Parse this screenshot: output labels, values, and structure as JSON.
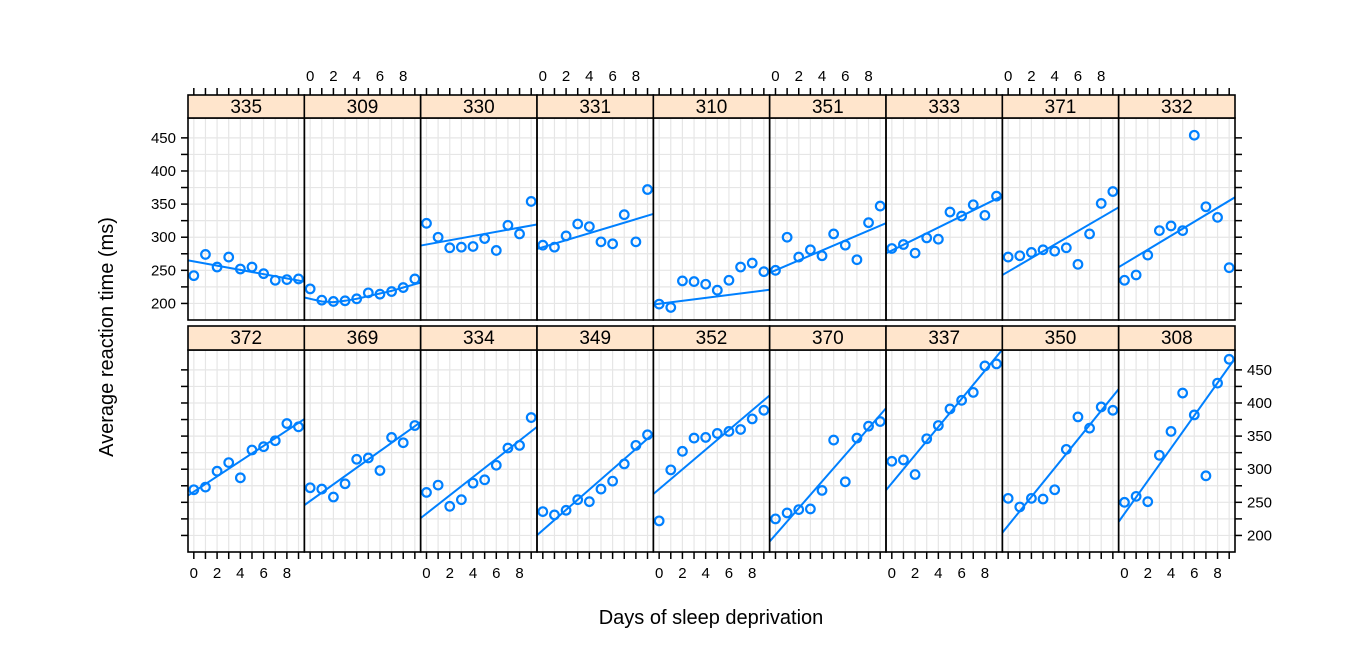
{
  "chart_data": {
    "type": "scatter",
    "layout": "trellis-9x2",
    "xlabel": "Days of sleep deprivation",
    "ylabel": "Average reaction time (ms)",
    "xlim": [
      -0.5,
      9.5
    ],
    "ylim": [
      175,
      480
    ],
    "x_ticks": [
      0,
      2,
      4,
      6,
      8
    ],
    "y_ticks": [
      200,
      250,
      300,
      350,
      400,
      450
    ],
    "grid": true,
    "strip_color": "#FFE5CC",
    "point_color": "#0080FF",
    "line_color": "#0080FF",
    "days": [
      0,
      1,
      2,
      3,
      4,
      5,
      6,
      7,
      8,
      9
    ],
    "panels": [
      {
        "subject": "335",
        "values": [
          242,
          274,
          255,
          270,
          252,
          255,
          245,
          235,
          236,
          237
        ],
        "fit": [
          263.5,
          234.6
        ]
      },
      {
        "subject": "309",
        "values": [
          222,
          205,
          203,
          204,
          207,
          216,
          214,
          218,
          224,
          237
        ],
        "fit": [
          205.2,
          223.1
        ],
        "curve": [
          207,
          203,
          202,
          204,
          207,
          211,
          215,
          219,
          224,
          229
        ]
      },
      {
        "subject": "330",
        "values": [
          321,
          300,
          284,
          285,
          286,
          298,
          280,
          318,
          305,
          354
        ],
        "fit": [
          289.0,
          317.7
        ]
      },
      {
        "subject": "331",
        "values": [
          288,
          285,
          302,
          320,
          316,
          293,
          290,
          334,
          293,
          372
        ],
        "fit": [
          285.0,
          332.5
        ]
      },
      {
        "subject": "310",
        "values": [
          199,
          194,
          234,
          233,
          229,
          220,
          235,
          255,
          261,
          248
        ],
        "fit": [
          199.5,
          219.5
        ]
      },
      {
        "subject": "351",
        "values": [
          250,
          300,
          270,
          281,
          272,
          305,
          288,
          266,
          322,
          347
        ],
        "fit": [
          250.0,
          317.5
        ]
      },
      {
        "subject": "333",
        "values": [
          283,
          289,
          276,
          299,
          297,
          338,
          332,
          349,
          333,
          362
        ],
        "fit": [
          280.0,
          358.0
        ]
      },
      {
        "subject": "371",
        "values": [
          270,
          272,
          277,
          281,
          279,
          284,
          259,
          305,
          351,
          369
        ],
        "fit": [
          248.0,
          340.0
        ]
      },
      {
        "subject": "332",
        "values": [
          235,
          243,
          273,
          310,
          317,
          310,
          454,
          346,
          330,
          254
        ],
        "fit": [
          260.0,
          355.0
        ]
      },
      {
        "subject": "372",
        "values": [
          269,
          273,
          297,
          310,
          287,
          329,
          334,
          343,
          369,
          364
        ],
        "fit": [
          266.0,
          370.0
        ]
      },
      {
        "subject": "369",
        "values": [
          272,
          270,
          258,
          278,
          315,
          317,
          298,
          348,
          340,
          366
        ],
        "fit": [
          252.0,
          365.0
        ]
      },
      {
        "subject": "334",
        "values": [
          265,
          276,
          244,
          254,
          279,
          284,
          306,
          332,
          336,
          378
        ],
        "fit": [
          233.0,
          357.0
        ]
      },
      {
        "subject": "349",
        "values": [
          236,
          231,
          238,
          254,
          251,
          270,
          282,
          308,
          336,
          352
        ],
        "fit": [
          208.0,
          346.0
        ]
      },
      {
        "subject": "352",
        "values": [
          222,
          299,
          327,
          347,
          348,
          354,
          357,
          360,
          376,
          389
        ],
        "fit": [
          270.0,
          404.0
        ]
      },
      {
        "subject": "370",
        "values": [
          225,
          234,
          239,
          240,
          268,
          344,
          281,
          347,
          365,
          372
        ],
        "fit": [
          201.0,
          382.0
        ]
      },
      {
        "subject": "337",
        "values": [
          312,
          314,
          292,
          346,
          366,
          391,
          404,
          416,
          456,
          459
        ],
        "fit": [
          279.0,
          470.0
        ]
      },
      {
        "subject": "350",
        "values": [
          256,
          243,
          256,
          255,
          269,
          330,
          379,
          362,
          394,
          389
        ],
        "fit": [
          215.0,
          410.0
        ]
      },
      {
        "subject": "308",
        "values": [
          250,
          259,
          251,
          321,
          357,
          415,
          382,
          290,
          430,
          466
        ],
        "fit": [
          233.0,
          455.0
        ]
      }
    ]
  }
}
